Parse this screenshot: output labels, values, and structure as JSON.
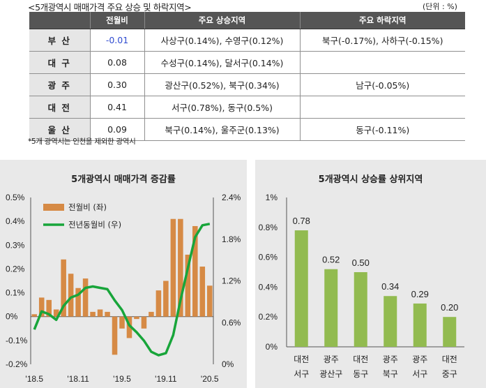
{
  "header": {
    "title": "<5개광역시 매매가격 주요 상승 및 하락지역>",
    "unit": "(단위 : %)"
  },
  "table": {
    "columns": [
      "",
      "전월비",
      "주요 상승지역",
      "주요 하락지역"
    ],
    "rows": [
      {
        "city": "부 산",
        "mom": "-0.01",
        "up": "사상구(0.14%), 수영구(0.12%)",
        "down": "북구(-0.17%), 사하구(-0.15%)"
      },
      {
        "city": "대 구",
        "mom": "0.08",
        "up": "수성구(0.14%), 달서구(0.14%)",
        "down": ""
      },
      {
        "city": "광 주",
        "mom": "0.30",
        "up": "광산구(0.52%), 북구(0.34%)",
        "down": "남구(-0.05%)"
      },
      {
        "city": "대 전",
        "mom": "0.41",
        "up": "서구(0.78%), 동구(0.5%)",
        "down": ""
      },
      {
        "city": "울 산",
        "mom": "0.09",
        "up": "북구(0.14%), 울주군(0.13%)",
        "down": "동구(-0.11%)"
      }
    ]
  },
  "footnote": "*5개 광역시는 인천을 제외한 광역시",
  "colors": {
    "bar_orange": "#d68a45",
    "line_green": "#18a53a",
    "bar_green": "#92bb50",
    "header_bg": "#555555",
    "negative_text": "#2f4bd0"
  },
  "chart_data": [
    {
      "type": "bar",
      "title": "5개광역시 매매가격 증감률",
      "x_tick_labels": [
        "'18.5",
        "'18.11",
        "'19.5",
        "'19.11",
        "'20.5"
      ],
      "y_left_ticks": [
        "0.5%",
        "0.4%",
        "0.3%",
        "0.2%",
        "0.1%",
        "0%",
        "-0.1%",
        "-0.2%"
      ],
      "y_right_ticks": [
        "2.4%",
        "1.8%",
        "1.2%",
        "0.6%",
        "0%"
      ],
      "y_left_range": [
        -0.2,
        0.5
      ],
      "y_right_range": [
        0,
        2.4
      ],
      "legend": [
        "전월비 (좌)",
        "전년동월비 (우)"
      ],
      "x": [
        "2018.05",
        "2018.06",
        "2018.07",
        "2018.08",
        "2018.09",
        "2018.10",
        "2018.11",
        "2018.12",
        "2019.01",
        "2019.02",
        "2019.03",
        "2019.04",
        "2019.05",
        "2019.06",
        "2019.07",
        "2019.08",
        "2019.09",
        "2019.10",
        "2019.11",
        "2019.12",
        "2020.01",
        "2020.02",
        "2020.03",
        "2020.04",
        "2020.05"
      ],
      "series": [
        {
          "name": "전월비 (좌)",
          "axis": "left",
          "type": "bar",
          "values": [
            0.01,
            0.08,
            0.07,
            0.03,
            0.24,
            0.18,
            0.12,
            0.16,
            0.02,
            0.03,
            0.02,
            -0.16,
            -0.05,
            -0.09,
            -0.01,
            -0.05,
            0.02,
            0.11,
            0.15,
            0.41,
            0.41,
            0.26,
            0.38,
            0.21,
            0.13
          ]
        },
        {
          "name": "전년동월비 (우)",
          "axis": "right",
          "type": "line",
          "values": [
            0.5,
            0.76,
            0.72,
            0.64,
            0.84,
            0.96,
            1.0,
            1.1,
            1.12,
            1.1,
            1.08,
            0.92,
            0.78,
            0.56,
            0.46,
            0.34,
            0.18,
            0.13,
            0.16,
            0.42,
            0.92,
            1.38,
            1.83,
            2.0,
            2.02
          ]
        }
      ]
    },
    {
      "type": "bar",
      "title": "5개광역시 상승률 상위지역",
      "y_ticks": [
        "1%",
        "0.8%",
        "0.6%",
        "0.4%",
        "0.2%",
        "0%"
      ],
      "ylim": [
        0,
        1
      ],
      "categories": [
        {
          "city": "대전",
          "district": "서구"
        },
        {
          "city": "광주",
          "district": "광산구"
        },
        {
          "city": "대전",
          "district": "동구"
        },
        {
          "city": "광주",
          "district": "북구"
        },
        {
          "city": "광주",
          "district": "서구"
        },
        {
          "city": "대전",
          "district": "중구"
        }
      ],
      "values": [
        0.78,
        0.52,
        0.5,
        0.34,
        0.29,
        0.2
      ],
      "value_labels": [
        "0.78",
        "0.52",
        "0.50",
        "0.34",
        "0.29",
        "0.20"
      ]
    }
  ]
}
